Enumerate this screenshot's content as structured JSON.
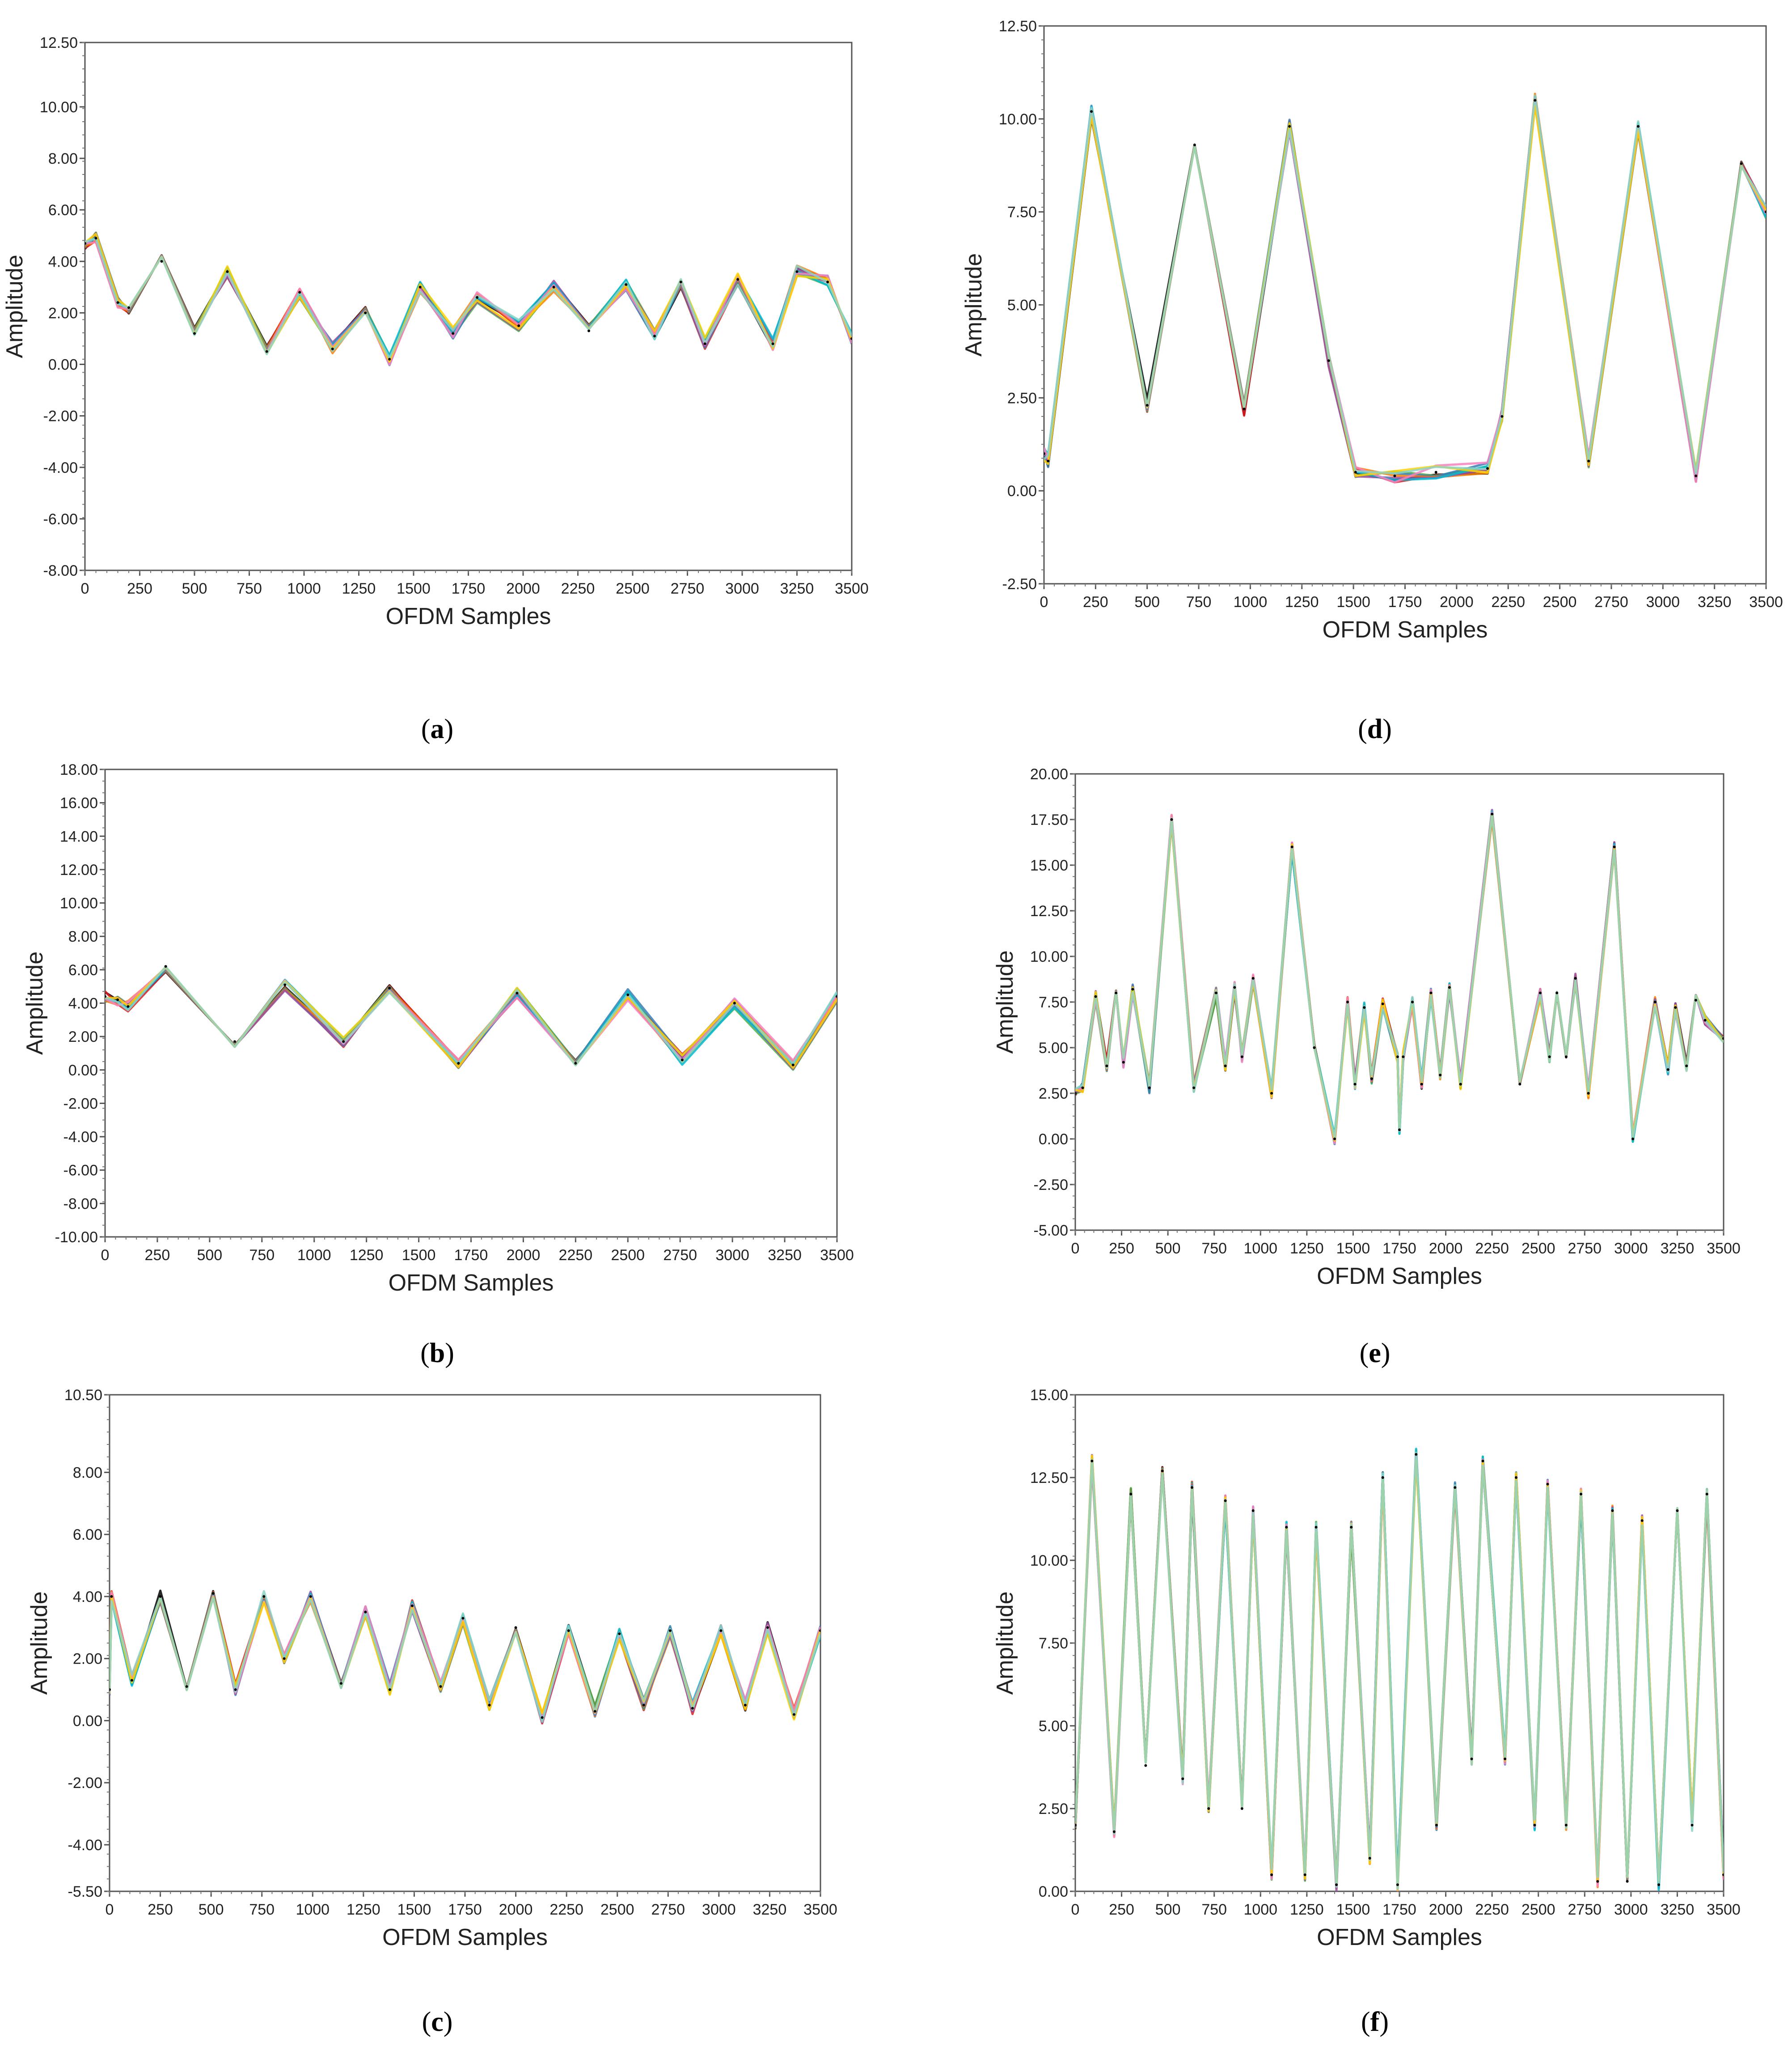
{
  "colors": [
    "#000000",
    "#e41a1c",
    "#4daf4a",
    "#377eb8",
    "#ff7f00",
    "#984ea3",
    "#00bcd4",
    "#f781bf",
    "#ffd400",
    "#8dd3c7"
  ],
  "chart_data": [
    {
      "id": "a",
      "type": "line",
      "caption_letter": "a",
      "xlabel": "OFDM Samples",
      "ylabel": "Amplitude",
      "xlim": [
        0,
        3500
      ],
      "ylim": [
        -8,
        12.5
      ],
      "xticks": [
        "0",
        "250",
        "500",
        "750",
        "1000",
        "1250",
        "1500",
        "1750",
        "2000",
        "2250",
        "2500",
        "2750",
        "3000",
        "3250",
        "3500"
      ],
      "yticks": [
        {
          "v": 12.5,
          "label": "12.50"
        },
        {
          "v": 10,
          "label": "10.00"
        },
        {
          "v": 8,
          "label": "8.00"
        },
        {
          "v": 6,
          "label": "6.00"
        },
        {
          "v": 4,
          "label": "4.00"
        },
        {
          "v": 2,
          "label": "2.00"
        },
        {
          "v": 0,
          "label": "0.00"
        },
        {
          "v": -2,
          "label": "-2.00"
        },
        {
          "v": -4,
          "label": "-4.00"
        },
        {
          "v": -6,
          "label": "-6.00"
        },
        {
          "v": -8,
          "label": "-8.00"
        }
      ],
      "x": [
        0,
        50,
        150,
        200,
        350,
        500,
        650,
        830,
        980,
        1130,
        1280,
        1390,
        1530,
        1680,
        1790,
        1980,
        2140,
        2300,
        2470,
        2600,
        2720,
        2830,
        2980,
        3140,
        3250,
        3390,
        3500
      ],
      "y": [
        4.7,
        4.9,
        2.4,
        2.2,
        4.0,
        1.2,
        3.6,
        0.5,
        2.8,
        0.6,
        2.0,
        0.2,
        3.0,
        1.2,
        2.6,
        1.5,
        3.0,
        1.3,
        3.1,
        1.1,
        3.2,
        0.8,
        3.3,
        0.8,
        3.6,
        3.2,
        1.0
      ]
    },
    {
      "id": "b",
      "type": "line",
      "caption_letter": "b",
      "xlabel": "OFDM Samples",
      "ylabel": "Amplitude",
      "xlim": [
        0,
        3500
      ],
      "ylim": [
        -10,
        18
      ],
      "xticks": [
        "0",
        "250",
        "500",
        "750",
        "1000",
        "1250",
        "1500",
        "1750",
        "2000",
        "2250",
        "2500",
        "2750",
        "3000",
        "3250",
        "3500"
      ],
      "yticks": [
        {
          "v": 18,
          "label": "18.00"
        },
        {
          "v": 16,
          "label": "16.00"
        },
        {
          "v": 14,
          "label": "14.00"
        },
        {
          "v": 12,
          "label": "12.00"
        },
        {
          "v": 10,
          "label": "10.00"
        },
        {
          "v": 8,
          "label": "8.00"
        },
        {
          "v": 6,
          "label": "6.00"
        },
        {
          "v": 4,
          "label": "4.00"
        },
        {
          "v": 2,
          "label": "2.00"
        },
        {
          "v": 0,
          "label": "0.00"
        },
        {
          "v": -2,
          "label": "-2.00"
        },
        {
          "v": -4,
          "label": "-4.00"
        },
        {
          "v": -6,
          "label": "-6.00"
        },
        {
          "v": -8,
          "label": "-8.00"
        },
        {
          "v": -10,
          "label": "-10.00"
        }
      ],
      "x": [
        0,
        60,
        110,
        290,
        620,
        860,
        1140,
        1360,
        1690,
        1970,
        2250,
        2500,
        2760,
        3010,
        3290,
        3500
      ],
      "y": [
        4.4,
        4.2,
        3.8,
        6.2,
        1.7,
        5.1,
        1.7,
        4.9,
        0.4,
        4.6,
        0.4,
        4.5,
        0.6,
        4.0,
        0.3,
        4.4
      ]
    },
    {
      "id": "c",
      "type": "line",
      "caption_letter": "c",
      "xlabel": "OFDM Samples",
      "ylabel": "Amplitude",
      "xlim": [
        0,
        3500
      ],
      "ylim": [
        -5.5,
        10.5
      ],
      "xticks": [
        "0",
        "250",
        "500",
        "750",
        "1000",
        "1250",
        "1500",
        "1750",
        "2000",
        "2250",
        "2500",
        "2750",
        "3000",
        "3250",
        "3500"
      ],
      "yticks": [
        {
          "v": 10.5,
          "label": "10.50"
        },
        {
          "v": 8,
          "label": "8.00"
        },
        {
          "v": 6,
          "label": "6.00"
        },
        {
          "v": 4,
          "label": "4.00"
        },
        {
          "v": 2,
          "label": "2.00"
        },
        {
          "v": 0,
          "label": "0.00"
        },
        {
          "v": -2,
          "label": "-2.00"
        },
        {
          "v": -4,
          "label": "-4.00"
        },
        {
          "v": -5.5,
          "label": "-5.50"
        }
      ],
      "x": [
        0,
        10,
        110,
        250,
        380,
        510,
        620,
        760,
        860,
        990,
        1140,
        1260,
        1380,
        1490,
        1630,
        1740,
        1870,
        2000,
        2130,
        2260,
        2390,
        2510,
        2630,
        2760,
        2870,
        3010,
        3130,
        3240,
        3370,
        3500
      ],
      "y": [
        1.0,
        4.0,
        1.3,
        4.0,
        1.1,
        4.1,
        1.0,
        4.0,
        2.0,
        4.0,
        1.2,
        3.5,
        1.0,
        3.7,
        1.1,
        3.3,
        0.5,
        3.0,
        0.1,
        2.9,
        0.3,
        2.8,
        0.5,
        2.9,
        0.4,
        2.9,
        0.5,
        3.0,
        0.2,
        2.9
      ]
    },
    {
      "id": "d",
      "type": "line",
      "caption_letter": "d",
      "xlabel": "OFDM Samples",
      "ylabel": "Amplitude",
      "xlim": [
        0,
        3500
      ],
      "ylim": [
        -2.5,
        12.5
      ],
      "xticks": [
        "0",
        "250",
        "500",
        "750",
        "1000",
        "1250",
        "1500",
        "1750",
        "2000",
        "2250",
        "2500",
        "2750",
        "3000",
        "3250",
        "3500"
      ],
      "yticks": [
        {
          "v": 12.5,
          "label": "12.50"
        },
        {
          "v": 10,
          "label": "10.00"
        },
        {
          "v": 7.5,
          "label": "7.50"
        },
        {
          "v": 5,
          "label": "5.00"
        },
        {
          "v": 2.5,
          "label": "2.50"
        },
        {
          "v": 0,
          "label": "0.00"
        },
        {
          "v": -2.5,
          "label": "-2.50"
        }
      ],
      "x": [
        0,
        20,
        230,
        500,
        730,
        970,
        1190,
        1380,
        1510,
        1700,
        1900,
        2150,
        2220,
        2380,
        2640,
        2880,
        3160,
        3380,
        3500
      ],
      "y": [
        1.0,
        0.8,
        10.2,
        2.3,
        9.3,
        2.2,
        9.8,
        3.5,
        0.5,
        0.4,
        0.5,
        0.6,
        2.0,
        10.5,
        0.8,
        9.8,
        0.4,
        8.8,
        7.5
      ]
    },
    {
      "id": "e",
      "type": "line",
      "caption_letter": "e",
      "xlabel": "OFDM Samples",
      "ylabel": "Amplitude",
      "xlim": [
        0,
        3500
      ],
      "ylim": [
        -5,
        20
      ],
      "xticks": [
        "0",
        "250",
        "500",
        "750",
        "1000",
        "1250",
        "1500",
        "1750",
        "2000",
        "2250",
        "2500",
        "2750",
        "3000",
        "3250",
        "3500"
      ],
      "yticks": [
        {
          "v": 20,
          "label": "20.00"
        },
        {
          "v": 17.5,
          "label": "17.50"
        },
        {
          "v": 15,
          "label": "15.00"
        },
        {
          "v": 12.5,
          "label": "12.50"
        },
        {
          "v": 10,
          "label": "10.00"
        },
        {
          "v": 7.5,
          "label": "7.50"
        },
        {
          "v": 5,
          "label": "5.00"
        },
        {
          "v": 2.5,
          "label": "2.50"
        },
        {
          "v": 0,
          "label": "0.00"
        },
        {
          "v": -2.5,
          "label": "-2.50"
        },
        {
          "v": -5,
          "label": "-5.00"
        }
      ],
      "x": [
        0,
        40,
        110,
        170,
        220,
        260,
        310,
        400,
        520,
        640,
        760,
        810,
        860,
        900,
        960,
        1060,
        1170,
        1290,
        1400,
        1470,
        1510,
        1560,
        1600,
        1660,
        1740,
        1750,
        1770,
        1820,
        1870,
        1920,
        1970,
        2020,
        2080,
        2250,
        2400,
        2510,
        2560,
        2600,
        2650,
        2700,
        2770,
        2910,
        3010,
        3130,
        3200,
        3240,
        3300,
        3350,
        3400,
        3500
      ],
      "y": [
        2.5,
        2.8,
        7.8,
        4.0,
        8.0,
        4.2,
        8.2,
        2.8,
        17.5,
        2.8,
        8.0,
        4.0,
        8.3,
        4.5,
        8.8,
        2.5,
        16.0,
        5.0,
        0.0,
        7.5,
        3.0,
        7.2,
        3.3,
        7.4,
        4.5,
        0.5,
        4.5,
        7.5,
        3.0,
        8.0,
        3.5,
        8.3,
        3.0,
        17.8,
        3.0,
        8.0,
        4.5,
        8.0,
        4.5,
        8.8,
        2.5,
        16.0,
        0.0,
        7.5,
        3.8,
        7.2,
        4.0,
        7.6,
        6.5,
        5.5
      ]
    },
    {
      "id": "f",
      "type": "line",
      "caption_letter": "f",
      "xlabel": "OFDM Samples",
      "ylabel": "Amplitude",
      "xlim": [
        0,
        3500
      ],
      "ylim": [
        0,
        15
      ],
      "xticks": [
        "0",
        "250",
        "500",
        "750",
        "1000",
        "1250",
        "1500",
        "1750",
        "2000",
        "2250",
        "2500",
        "2750",
        "3000",
        "3250",
        "3500"
      ],
      "yticks": [
        {
          "v": 15,
          "label": "15.00"
        },
        {
          "v": 12.5,
          "label": "12.50"
        },
        {
          "v": 10,
          "label": "10.00"
        },
        {
          "v": 7.5,
          "label": "7.50"
        },
        {
          "v": 5,
          "label": "5.00"
        },
        {
          "v": 2.5,
          "label": "2.50"
        },
        {
          "v": 0,
          "label": "0.00"
        }
      ],
      "x": [
        0,
        90,
        210,
        300,
        380,
        470,
        580,
        630,
        720,
        810,
        900,
        960,
        1060,
        1140,
        1240,
        1300,
        1410,
        1490,
        1590,
        1660,
        1740,
        1840,
        1950,
        2050,
        2140,
        2200,
        2320,
        2380,
        2480,
        2550,
        2650,
        2730,
        2820,
        2900,
        2980,
        3060,
        3150,
        3250,
        3330,
        3410,
        3500
      ],
      "y": [
        2.0,
        13.0,
        1.8,
        12.0,
        3.8,
        12.7,
        3.4,
        12.2,
        2.5,
        11.8,
        2.5,
        11.5,
        0.5,
        11.0,
        0.5,
        11.0,
        0.2,
        11.0,
        1.0,
        12.5,
        0.2,
        13.2,
        2.0,
        12.2,
        4.0,
        13.0,
        4.0,
        12.5,
        2.0,
        12.3,
        2.0,
        12.0,
        0.3,
        11.5,
        0.3,
        11.2,
        0.2,
        11.5,
        2.0,
        12.0,
        0.5
      ]
    }
  ]
}
